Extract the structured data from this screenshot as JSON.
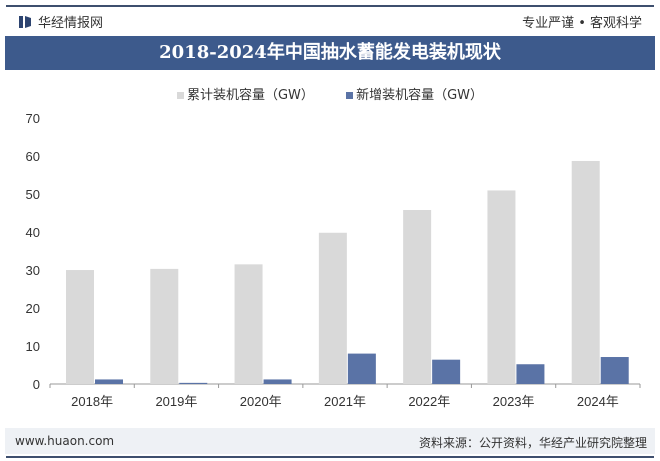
{
  "header": {
    "brand": "华经情报网",
    "slogan": "专业严谨 • 客观科学",
    "logo_icon": "bookmark-logo-icon"
  },
  "footer": {
    "website": "www.huaon.com",
    "source": "资料来源：公开资料，华经产业研究院整理"
  },
  "watermark": {
    "text": "华经产业研究院",
    "url": "www.huaon.com"
  },
  "chart_data": {
    "type": "bar",
    "title": "2018-2024年中国抽水蓄能发电装机现状",
    "categories": [
      "2018年",
      "2019年",
      "2020年",
      "2021年",
      "2022年",
      "2023年",
      "2024年"
    ],
    "series": [
      {
        "name": "累计装机容量（GW）",
        "color": "#d9d9d9",
        "values": [
          29.99,
          30.29,
          31.49,
          39.8,
          45.79,
          50.94,
          58.69
        ]
      },
      {
        "name": "新增装机容量（GW）",
        "color": "#5a73a6",
        "values": [
          1.2,
          0.3,
          1.2,
          8.0,
          6.4,
          5.2,
          7.1
        ]
      }
    ],
    "ylim": [
      0,
      70
    ],
    "yticks": [
      "0",
      "10",
      "20",
      "30",
      "40",
      "50",
      "60",
      "70"
    ],
    "grid": false,
    "legend": "top"
  }
}
